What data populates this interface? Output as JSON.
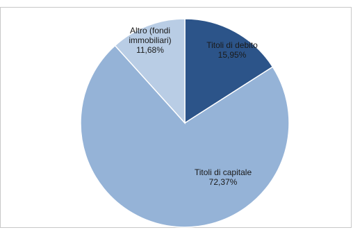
{
  "chart_data": {
    "type": "pie",
    "title": "",
    "slices": [
      {
        "label_lines": [
          "Titoli di debito",
          "15,95%"
        ],
        "category": "Titoli di debito",
        "value": 15.95,
        "color": "#2c5489"
      },
      {
        "label_lines": [
          "Titoli di capitale",
          "72,37%"
        ],
        "category": "Titoli di capitale",
        "value": 72.37,
        "color": "#95b3d7"
      },
      {
        "label_lines": [
          "Altro (fondi",
          "immobiliari)",
          "11,68%"
        ],
        "category": "Altro (fondi immobiliari)",
        "value": 11.68,
        "color": "#b9cde5"
      }
    ],
    "start_angle_deg": 0,
    "direction": "clockwise",
    "legend": "none"
  }
}
